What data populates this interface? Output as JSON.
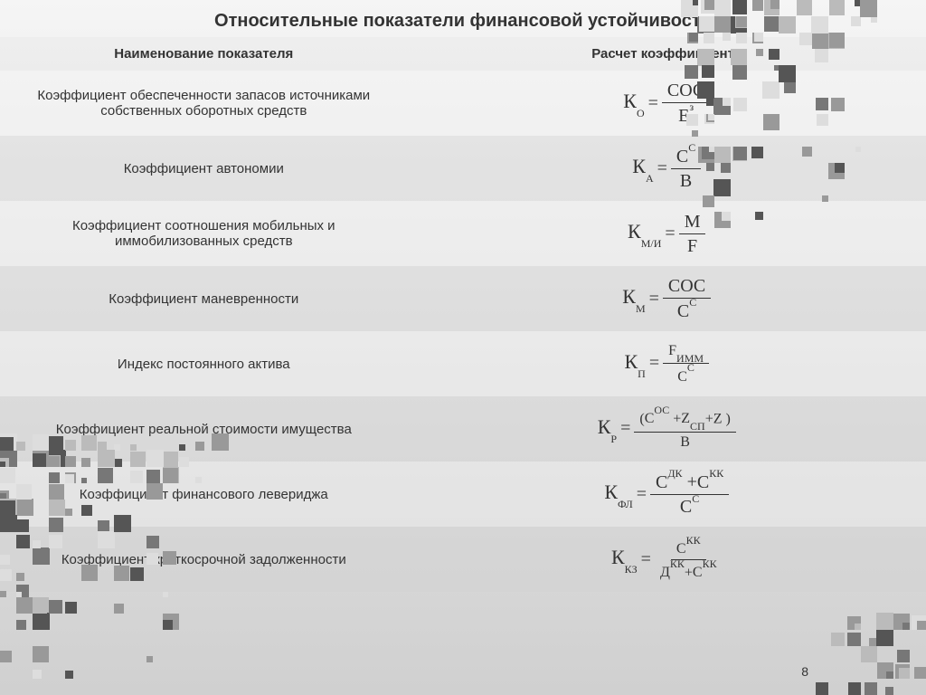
{
  "title": "Относительные показатели финансовой устойчивости",
  "headers": {
    "col1": "Наименование показателя",
    "col2": "Расчет коэффициента"
  },
  "rows": [
    {
      "name": "Коэффициент обеспеченности  запасов источниками собственных оборотных средств",
      "coef_base": "К",
      "coef_sub": "О",
      "num": "СОС",
      "den_base": "Е",
      "den_sup": "з"
    },
    {
      "name": "Коэффициент автономии",
      "coef_base": "К",
      "coef_sub": "А",
      "num_base": "С",
      "num_sup": "С",
      "den": "В"
    },
    {
      "name": "Коэффициент соотношения мобильных и иммобилизованных средств",
      "coef_base": "К",
      "coef_sub": "М/И",
      "num": "M",
      "den": "F"
    },
    {
      "name": "Коэффициент маневренности",
      "coef_base": "К",
      "coef_sub": "М",
      "num": "СОС",
      "den_base": "С",
      "den_sup": "С"
    },
    {
      "name": "Индекс постоянного актива",
      "coef_base": "К",
      "coef_sub": "П",
      "num_base": "F",
      "num_sub": "ИММ",
      "den_base": "С",
      "den_sup": "С"
    },
    {
      "name": "Коэффициент реальной стоимости имущества",
      "coef_base": "К",
      "coef_sub": "Р",
      "num_complex": [
        {
          "t": "("
        },
        {
          "t": "С",
          "sup": "ОС"
        },
        {
          "t": " +"
        },
        {
          "t": "Z",
          "sub": "СП"
        },
        {
          "t": "+Z   )"
        }
      ],
      "den": "В"
    },
    {
      "name": "Коэффициент финансового левериджа",
      "coef_base": "К",
      "coef_sub": "ФЛ",
      "num_complex": [
        {
          "t": "С",
          "sup": "ДК"
        },
        {
          "t": " +"
        },
        {
          "t": "С",
          "sup": "КК"
        }
      ],
      "den_base": "С",
      "den_sup": "С"
    },
    {
      "name": "Коэффициент краткосрочной задолженности",
      "coef_base": "К",
      "coef_sub": "КЗ",
      "num_base": "С",
      "num_sup": "КК",
      "den_complex": [
        {
          "t": "Д",
          "sup": "КК"
        },
        {
          "t": "+"
        },
        {
          "t": "С",
          "sup": "КК"
        }
      ]
    }
  ],
  "page_number": "8",
  "styling": {
    "background_gradient": [
      "#f5f5f5",
      "#d0d0d0"
    ],
    "deco_colors": [
      "#555555",
      "#777777",
      "#999999",
      "#bbbbbb",
      "#dddddd"
    ],
    "title_color": "#333333",
    "text_color": "#333333",
    "row_odd_bg": "rgba(245,245,245,0.35)",
    "row_even_bg": "rgba(210,210,210,0.35)",
    "formula_font": "Times New Roman",
    "title_fontsize": 20,
    "body_fontsize": 15,
    "formula_fontsize": 20
  }
}
